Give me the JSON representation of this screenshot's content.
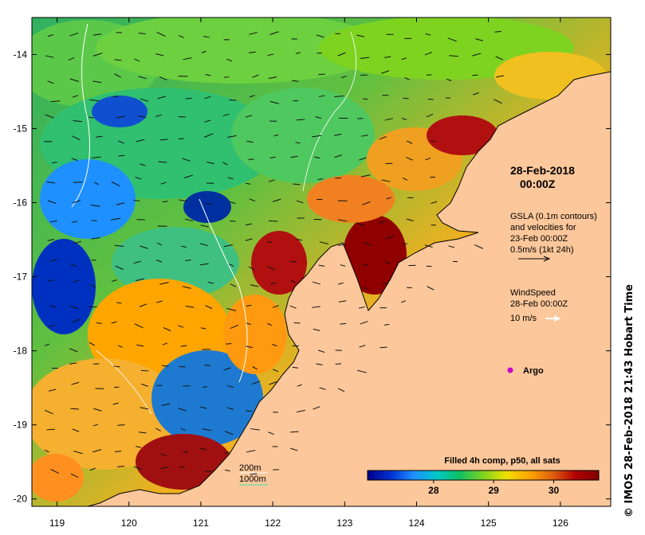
{
  "map": {
    "lat_ticks": [
      "-14",
      "-15",
      "-16",
      "-17",
      "-18",
      "-19",
      "-20"
    ],
    "lat_values": [
      -14,
      -15,
      -16,
      -17,
      -18,
      -19,
      -20
    ],
    "lon_ticks": [
      "119",
      "120",
      "121",
      "122",
      "123",
      "124",
      "125",
      "126"
    ],
    "lon_values": [
      119,
      120,
      121,
      122,
      123,
      124,
      125,
      126
    ],
    "lon_range": [
      118.65,
      126.7
    ],
    "lat_range": [
      -20.1,
      -13.5
    ],
    "land_color": "#fcc79a",
    "coast_color": "#000000"
  },
  "annotations": {
    "date": "28-Feb-2018",
    "time": "00:00Z",
    "gsla_line1": "GSLA (0.1m contours)",
    "gsla_line2": "and velocities for",
    "gsla_line3": "23-Feb 00:00Z",
    "gsla_line4": "0.5m/s (1kt 24h)",
    "wind_line1": "WindSpeed",
    "wind_line2": "28-Feb 00:00Z",
    "wind_line3": "10 m/s",
    "argo_label": "Argo",
    "argo_color": "#cc00cc",
    "depth_200": "200m",
    "depth_1000": "1000m",
    "depth_200_color": "#ffffff",
    "depth_1000_color": "#40e0b0"
  },
  "colorbar": {
    "title": "Filled 4h comp, p50, all sats",
    "tick_labels": [
      "28",
      "29",
      "30"
    ],
    "tick_values": [
      28,
      29,
      30
    ],
    "range": [
      26.9,
      30.75
    ],
    "colors": [
      "#00008b",
      "#0030d0",
      "#1e90ff",
      "#00c8c8",
      "#10c060",
      "#7ed321",
      "#f0e000",
      "#ffa500",
      "#e06010",
      "#b00000",
      "#800000"
    ]
  },
  "credit": "© IMOS 28-Feb-2018 21:43 Hobart Time"
}
